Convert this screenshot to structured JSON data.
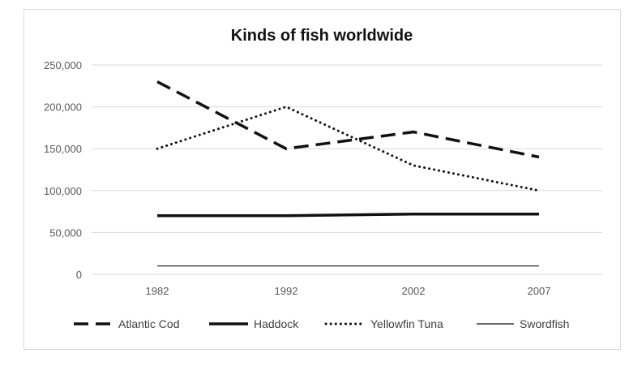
{
  "chart_data": {
    "type": "line",
    "title": "Kinds of fish worldwide",
    "categories": [
      "1982",
      "1992",
      "2002",
      "2007"
    ],
    "ylim": [
      0,
      250000
    ],
    "y_ticks": [
      "0",
      "50,000",
      "100,000",
      "150,000",
      "200,000",
      "250,000"
    ],
    "y_tick_values": [
      0,
      50000,
      100000,
      150000,
      200000,
      250000
    ],
    "grid": "horizontal",
    "legend_position": "bottom",
    "series": [
      {
        "name": "Atlantic Cod",
        "values": [
          230000,
          150000,
          170000,
          140000
        ],
        "style": "dashed"
      },
      {
        "name": "Haddock",
        "values": [
          70000,
          70000,
          72000,
          72000
        ],
        "style": "solid-thick"
      },
      {
        "name": "Yellowfin Tuna",
        "values": [
          150000,
          200000,
          130000,
          100000
        ],
        "style": "dotted"
      },
      {
        "name": "Swordfish",
        "values": [
          10000,
          10000,
          10000,
          10000
        ],
        "style": "solid-thin"
      }
    ]
  }
}
